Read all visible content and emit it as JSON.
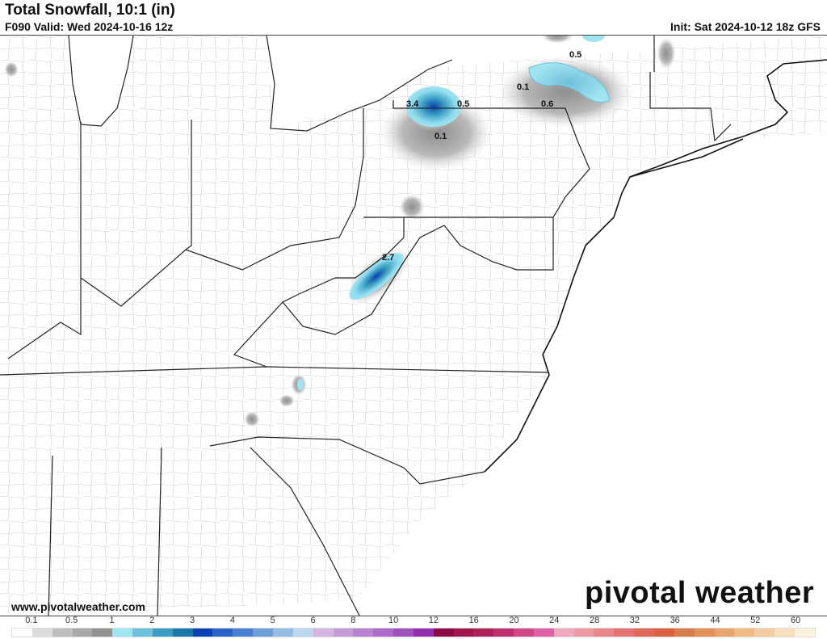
{
  "header": {
    "title": "Total Snowfall, 10:1 (in)",
    "valid": "F090 Valid: Wed 2024-10-16 12z",
    "init": "Init: Sat 2024-10-12 18z GFS"
  },
  "footer": {
    "url": "www.pivotalweather.com",
    "logo": "pivotal weather"
  },
  "map_labels": [
    "3.4",
    "0.5",
    "0.1",
    "0.5",
    "0.1",
    "0.6",
    "2.7"
  ],
  "colorbar": {
    "labels": [
      "0.1",
      "0.5",
      "1",
      "2",
      "3",
      "4",
      "5",
      "6",
      "8",
      "10",
      "12",
      "16",
      "20",
      "24",
      "28",
      "32",
      "36",
      "44",
      "52",
      "60"
    ],
    "colors": [
      "#ffffff",
      "#dcdcdc",
      "#bebebe",
      "#a8a8a8",
      "#929292",
      "#a0e4f0",
      "#6fc0dc",
      "#3a9cc0",
      "#1a78a6",
      "#0a40b4",
      "#2c62c8",
      "#4a80d4",
      "#6e9ed8",
      "#96bce4",
      "#bcd8f0",
      "#d4b4e2",
      "#c49ad8",
      "#b882d0",
      "#ac6ac8",
      "#a052bc",
      "#9430b0",
      "#8a0a44",
      "#a0144c",
      "#b02058",
      "#c03070",
      "#d04888",
      "#e060a8",
      "#f0a8bc",
      "#ec9aa0",
      "#e8868c",
      "#e47474",
      "#e06858",
      "#dc6040",
      "#d87c4c",
      "#e09058",
      "#e8a46c",
      "#f0b884",
      "#f4cca4",
      "#f8e0c0",
      "#fcf2dc"
    ]
  }
}
